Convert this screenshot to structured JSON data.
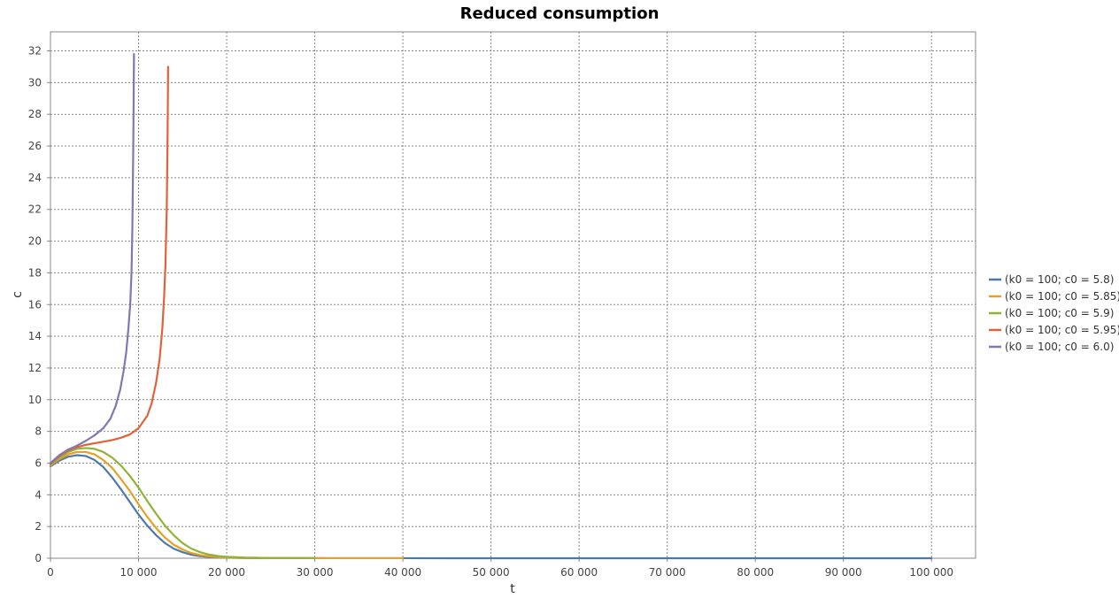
{
  "chart_data": {
    "type": "line",
    "title": "Reduced consumption",
    "xlabel": "t",
    "ylabel": "c",
    "xlim": [
      0,
      105000
    ],
    "ylim": [
      0,
      33.2
    ],
    "x_ticks": [
      0,
      10000,
      20000,
      30000,
      40000,
      50000,
      60000,
      70000,
      80000,
      90000,
      100000
    ],
    "x_tick_labels": [
      "0",
      "10 000",
      "20 000",
      "30 000",
      "40 000",
      "50 000",
      "60 000",
      "70 000",
      "80 000",
      "90 000",
      "100 000"
    ],
    "y_ticks": [
      0,
      2,
      4,
      6,
      8,
      10,
      12,
      14,
      16,
      18,
      20,
      22,
      24,
      26,
      28,
      30,
      32
    ],
    "y_tick_labels": [
      "0",
      "2",
      "4",
      "6",
      "8",
      "10",
      "12",
      "14",
      "16",
      "18",
      "20",
      "22",
      "24",
      "26",
      "28",
      "30",
      "32"
    ],
    "grid": true,
    "legend_position": "right",
    "series": [
      {
        "name": "(k0 = 100; c0 = 5.8)",
        "color": "#4e79a7",
        "x": [
          0,
          1000,
          2000,
          3000,
          4000,
          5000,
          6000,
          7000,
          8000,
          9000,
          10000,
          11000,
          12000,
          13000,
          14000,
          15000,
          16000,
          17000,
          18000,
          19000,
          20000,
          22000,
          25000,
          30000,
          40000,
          60000,
          80000,
          100000
        ],
        "y": [
          5.8,
          6.15,
          6.4,
          6.5,
          6.45,
          6.2,
          5.75,
          5.1,
          4.35,
          3.55,
          2.75,
          2.05,
          1.45,
          0.95,
          0.6,
          0.38,
          0.22,
          0.13,
          0.08,
          0.05,
          0.03,
          0.015,
          0.008,
          0.004,
          0.002,
          0.001,
          0.0005,
          0.0003
        ]
      },
      {
        "name": "(k0 = 100; c0 = 5.85)",
        "color": "#e6a025",
        "x": [
          0,
          1000,
          2000,
          3000,
          4000,
          5000,
          6000,
          7000,
          8000,
          9000,
          10000,
          11000,
          12000,
          13000,
          14000,
          15000,
          16000,
          17000,
          18000,
          19000,
          20000,
          22000,
          25000,
          30000,
          40000
        ],
        "y": [
          5.85,
          6.25,
          6.55,
          6.7,
          6.7,
          6.55,
          6.2,
          5.7,
          5.0,
          4.25,
          3.4,
          2.6,
          1.9,
          1.3,
          0.85,
          0.55,
          0.33,
          0.2,
          0.12,
          0.07,
          0.045,
          0.02,
          0.01,
          0.005,
          0.002
        ]
      },
      {
        "name": "(k0 = 100; c0 = 5.9)",
        "color": "#8fb336",
        "x": [
          0,
          1000,
          2000,
          3000,
          4000,
          5000,
          6000,
          7000,
          8000,
          9000,
          10000,
          11000,
          12000,
          13000,
          14000,
          15000,
          16000,
          17000,
          18000,
          19000,
          20000,
          22000,
          25000,
          30000
        ],
        "y": [
          5.9,
          6.35,
          6.7,
          6.9,
          6.95,
          6.9,
          6.7,
          6.35,
          5.85,
          5.2,
          4.45,
          3.6,
          2.8,
          2.05,
          1.45,
          0.95,
          0.6,
          0.38,
          0.23,
          0.14,
          0.09,
          0.04,
          0.015,
          0.005
        ]
      },
      {
        "name": "(k0 = 100; c0 = 5.95)",
        "color": "#e1623a",
        "x": [
          0,
          1000,
          2000,
          3000,
          4000,
          5000,
          6000,
          7000,
          8000,
          9000,
          10000,
          11000,
          11500,
          12000,
          12400,
          12700,
          12900,
          13050,
          13200,
          13300,
          13350
        ],
        "y": [
          5.95,
          6.45,
          6.8,
          7.0,
          7.15,
          7.25,
          7.35,
          7.45,
          7.6,
          7.8,
          8.2,
          9.0,
          9.8,
          11.1,
          12.6,
          14.5,
          16.5,
          18.5,
          22.0,
          27.0,
          31.0
        ]
      },
      {
        "name": "(k0 = 100; c0 = 6.0)",
        "color": "#8276b3",
        "x": [
          0,
          1000,
          2000,
          3000,
          4000,
          5000,
          6000,
          6800,
          7400,
          7900,
          8300,
          8600,
          8850,
          9050,
          9200,
          9300,
          9400,
          9480
        ],
        "y": [
          6.0,
          6.5,
          6.85,
          7.1,
          7.4,
          7.75,
          8.2,
          8.8,
          9.6,
          10.6,
          11.8,
          13.0,
          14.5,
          16.0,
          18.0,
          21.0,
          26.0,
          31.8
        ]
      }
    ]
  }
}
